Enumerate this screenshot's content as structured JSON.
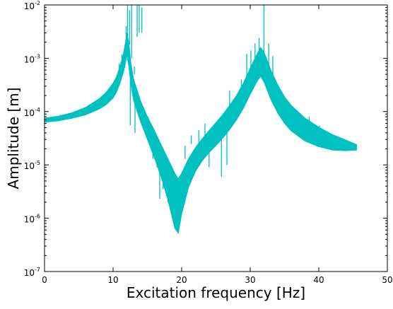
{
  "chart_data": {
    "type": "line",
    "title": "",
    "xlabel": "Excitation frequency [Hz]",
    "ylabel": "Amplitude [m]",
    "xlim": [
      0,
      50
    ],
    "ylim": [
      1e-07,
      0.01
    ],
    "yscale": "log",
    "grid": false,
    "series_color": "#00c0c0",
    "x_ticks": [
      {
        "value": 0,
        "label": "0"
      },
      {
        "value": 10,
        "label": "10"
      },
      {
        "value": 20,
        "label": "20"
      },
      {
        "value": 30,
        "label": "30"
      },
      {
        "value": 40,
        "label": "40"
      },
      {
        "value": 50,
        "label": "50"
      }
    ],
    "y_ticks": [
      {
        "value": 1e-07,
        "base": "10",
        "exp": "-7"
      },
      {
        "value": 1e-06,
        "base": "10",
        "exp": "-6"
      },
      {
        "value": 1e-05,
        "base": "10",
        "exp": "-5"
      },
      {
        "value": 0.0001,
        "base": "10",
        "exp": "-4"
      },
      {
        "value": 0.001,
        "base": "10",
        "exp": "-3"
      },
      {
        "value": 0.01,
        "base": "10",
        "exp": "-2"
      }
    ],
    "band": {
      "x": [
        0,
        2,
        4,
        6,
        8,
        9,
        10,
        10.5,
        11,
        11.5,
        11.8,
        12.0,
        12.3,
        12.6,
        13,
        14,
        15,
        16,
        17,
        18,
        19.0,
        19.5,
        20.0,
        21,
        22,
        23,
        24,
        25,
        26,
        27,
        28,
        29,
        30,
        31,
        31.5,
        32,
        32.5,
        33,
        34,
        35,
        36,
        38,
        40,
        42,
        44,
        45.5
      ],
      "upper": [
        7.5e-05,
        8.2e-05,
        9.5e-05,
        0.00012,
        0.000175,
        0.00023,
        0.00034,
        0.00045,
        0.0007,
        0.0012,
        0.002,
        0.003,
        0.002,
        0.0008,
        0.0004,
        0.00016,
        8e-05,
        4.5e-05,
        2.4e-05,
        1.3e-05,
        7e-06,
        5.5e-06,
        7e-06,
        1.3e-05,
        2.1e-05,
        3.1e-05,
        4.4e-05,
        6.2e-05,
        8.8e-05,
        0.00013,
        0.0002,
        0.00034,
        0.00065,
        0.0012,
        0.0016,
        0.0013,
        0.0009,
        0.0006,
        0.00032,
        0.00019,
        0.00013,
        7.5e-05,
        5.1e-05,
        3.7e-05,
        2.9e-05,
        2.4e-05
      ],
      "lower": [
        6.3e-05,
        6.7e-05,
        7.5e-05,
        8.7e-05,
        0.000112,
        0.000135,
        0.00018,
        0.00023,
        0.00034,
        0.00055,
        0.0008,
        0.0012,
        0.0007,
        0.00032,
        0.00016,
        6.5e-05,
        3e-05,
        1.4e-05,
        6e-06,
        2.2e-06,
        6.5e-07,
        5.2e-07,
        1.2e-06,
        3.8e-06,
        7.5e-06,
        1.2e-05,
        1.7e-05,
        2.3e-05,
        3.2e-05,
        4.6e-05,
        7e-05,
        0.000115,
        0.00021,
        0.00037,
        0.00046,
        0.00036,
        0.00025,
        0.00017,
        9.5e-05,
        6e-05,
        4.3e-05,
        2.8e-05,
        2.2e-05,
        1.9e-05,
        1.85e-05,
        1.9e-05
      ]
    },
    "spikes": [
      {
        "x": 2.3,
        "y0": 7.5e-05,
        "y1": 8.7e-05
      },
      {
        "x": 8.5,
        "y0": 0.00016,
        "y1": 0.00018
      },
      {
        "x": 10.9,
        "y0": 0.00044,
        "y1": 0.0008
      },
      {
        "x": 11.3,
        "y0": 0.0007,
        "y1": 0.0012
      },
      {
        "x": 11.9,
        "y0": 0.0018,
        "y1": 0.004
      },
      {
        "x": 12.1,
        "y0": 0.0025,
        "y1": 0.01
      },
      {
        "x": 12.4,
        "y0": 0.0018,
        "y1": 0.008
      },
      {
        "x": 12.7,
        "y0": 0.001,
        "y1": 0.01
      },
      {
        "x": 13.1,
        "y0": 0.0005,
        "y1": 0.0007
      },
      {
        "x": 13.5,
        "y0": 0.0025,
        "y1": 0.01
      },
      {
        "x": 13.8,
        "y0": 0.003,
        "y1": 0.01
      },
      {
        "x": 14.2,
        "y0": 0.003,
        "y1": 0.009
      },
      {
        "x": 12.5,
        "y0": 0.0004,
        "y1": 5.5e-05
      },
      {
        "x": 13.2,
        "y0": 0.0003,
        "y1": 4e-05
      },
      {
        "x": 15.1,
        "y0": 8e-05,
        "y1": 5e-05
      },
      {
        "x": 15.8,
        "y0": 4.5e-05,
        "y1": 1.3e-05
      },
      {
        "x": 16.4,
        "y0": 3e-05,
        "y1": 9e-06
      },
      {
        "x": 16.8,
        "y0": 2.6e-05,
        "y1": 2.3e-06
      },
      {
        "x": 17.3,
        "y0": 1.5e-05,
        "y1": 3.5e-06
      },
      {
        "x": 18.0,
        "y0": 9e-06,
        "y1": 2e-06
      },
      {
        "x": 20.5,
        "y0": 1.3e-05,
        "y1": 2.3e-05
      },
      {
        "x": 21.4,
        "y0": 2.5e-05,
        "y1": 3.6e-05
      },
      {
        "x": 22.5,
        "y0": 2.4e-05,
        "y1": 4.5e-05
      },
      {
        "x": 23.4,
        "y0": 3.5e-05,
        "y1": 6e-05
      },
      {
        "x": 24.0,
        "y0": 3e-05,
        "y1": 9e-06
      },
      {
        "x": 25.8,
        "y0": 4e-05,
        "y1": 6e-06
      },
      {
        "x": 26.6,
        "y0": 5e-05,
        "y1": 1e-05
      },
      {
        "x": 27.0,
        "y0": 0.0001,
        "y1": 0.00025
      },
      {
        "x": 28.7,
        "y0": 0.00017,
        "y1": 0.0004
      },
      {
        "x": 29.5,
        "y0": 0.0003,
        "y1": 0.0012
      },
      {
        "x": 30.1,
        "y0": 0.0005,
        "y1": 0.0014
      },
      {
        "x": 30.7,
        "y0": 0.0007,
        "y1": 0.0019
      },
      {
        "x": 31.3,
        "y0": 0.0009,
        "y1": 0.0024
      },
      {
        "x": 32.0,
        "y0": 0.0012,
        "y1": 0.01
      },
      {
        "x": 32.7,
        "y0": 0.0006,
        "y1": 0.0019
      },
      {
        "x": 33.3,
        "y0": 0.0003,
        "y1": 0.0011
      },
      {
        "x": 34.3,
        "y0": 0.0002,
        "y1": 0.00012
      },
      {
        "x": 35.2,
        "y0": 0.00014,
        "y1": 0.00015
      },
      {
        "x": 36.1,
        "y0": 0.0001,
        "y1": 0.00011
      },
      {
        "x": 37.4,
        "y0": 8e-05,
        "y1": 6e-05
      },
      {
        "x": 38.6,
        "y0": 6e-05,
        "y1": 8e-05
      },
      {
        "x": 40.1,
        "y0": 4.5e-05,
        "y1": 5.5e-05
      },
      {
        "x": 42.3,
        "y0": 3.4e-05,
        "y1": 3e-05
      },
      {
        "x": 44.0,
        "y0": 2.7e-05,
        "y1": 2.3e-05
      }
    ]
  }
}
